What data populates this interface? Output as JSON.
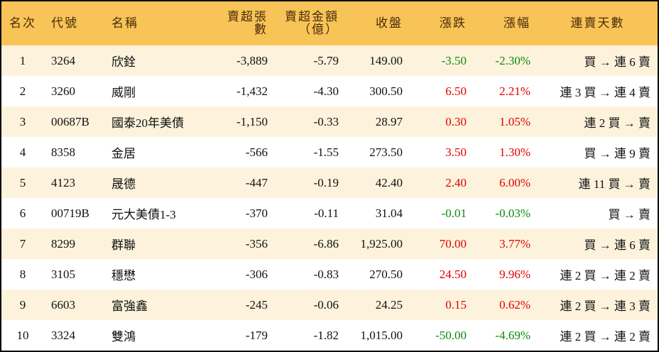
{
  "table": {
    "header": [
      "名次",
      "代號",
      "名稱",
      "賣超張數",
      "賣超金額\n（億）",
      "收盤",
      "漲跌",
      "漲幅",
      "連賣天數"
    ],
    "rows": [
      [
        "1",
        "3264",
        "欣銓",
        "-3,889",
        "-5.79",
        "149.00",
        "-3.50",
        "-2.30%",
        "買 → 連 6 賣"
      ],
      [
        "2",
        "3260",
        "威剛",
        "-1,432",
        "-4.30",
        "300.50",
        "6.50",
        "2.21%",
        "連 3 買 → 連 4 賣"
      ],
      [
        "3",
        "00687B",
        "國泰20年美債",
        "-1,150",
        "-0.33",
        "28.97",
        "0.30",
        "1.05%",
        "連 2 買 → 賣"
      ],
      [
        "4",
        "8358",
        "金居",
        "-566",
        "-1.55",
        "273.50",
        "3.50",
        "1.30%",
        "買 → 連 9 賣"
      ],
      [
        "5",
        "4123",
        "晟德",
        "-447",
        "-0.19",
        "42.40",
        "2.40",
        "6.00%",
        "連 11 買 → 賣"
      ],
      [
        "6",
        "00719B",
        "元大美債1-3",
        "-370",
        "-0.11",
        "31.04",
        "-0.01",
        "-0.03%",
        "買 → 賣"
      ],
      [
        "7",
        "8299",
        "群聯",
        "-356",
        "-6.86",
        "1,925.00",
        "70.00",
        "3.77%",
        "買 → 連 6 賣"
      ],
      [
        "8",
        "3105",
        "穩懋",
        "-306",
        "-0.83",
        "270.50",
        "24.50",
        "9.96%",
        "連 2 買 → 連 2 賣"
      ],
      [
        "9",
        "6603",
        "富強鑫",
        "-245",
        "-0.06",
        "24.25",
        "0.15",
        "0.62%",
        "連 2 買 → 連 3 賣"
      ],
      [
        "10",
        "3324",
        "雙鴻",
        "-179",
        "-1.82",
        "1,015.00",
        "-50.00",
        "-4.69%",
        "連 2 買 → 連 2 賣"
      ]
    ]
  }
}
